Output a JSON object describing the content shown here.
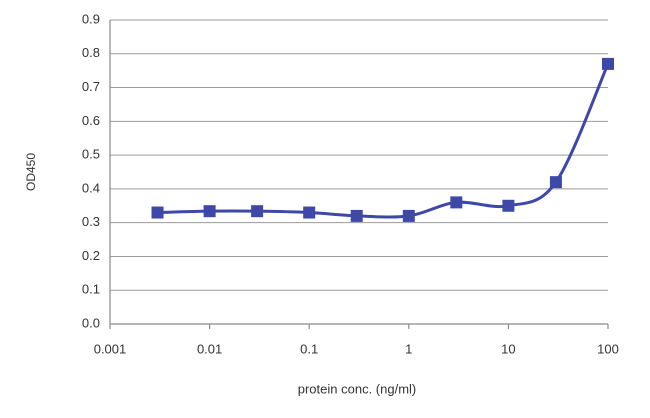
{
  "chart_data": {
    "type": "line",
    "x_label": "protein conc. (ng/ml)",
    "y_label": "OD450",
    "x_log": true,
    "grid": true,
    "xlim": [
      0.001,
      100
    ],
    "xticks": [
      0.001,
      0.01,
      0.1,
      1,
      10,
      100
    ],
    "ylim": [
      0,
      0.9
    ],
    "yticks": [
      {
        "value": 0,
        "label": "0.0"
      },
      0.1,
      0.2,
      0.3,
      0.4,
      0.5,
      0.6,
      0.7,
      0.8,
      0.9
    ],
    "x": [
      0.003,
      0.01,
      0.03,
      0.1,
      0.3,
      1,
      3,
      10,
      30,
      100
    ],
    "series": [
      {
        "color": "#3d48a8",
        "values": [
          0.33,
          0.334,
          0.334,
          0.33,
          0.32,
          0.32,
          0.36,
          0.35,
          0.42,
          0.77
        ]
      }
    ]
  }
}
